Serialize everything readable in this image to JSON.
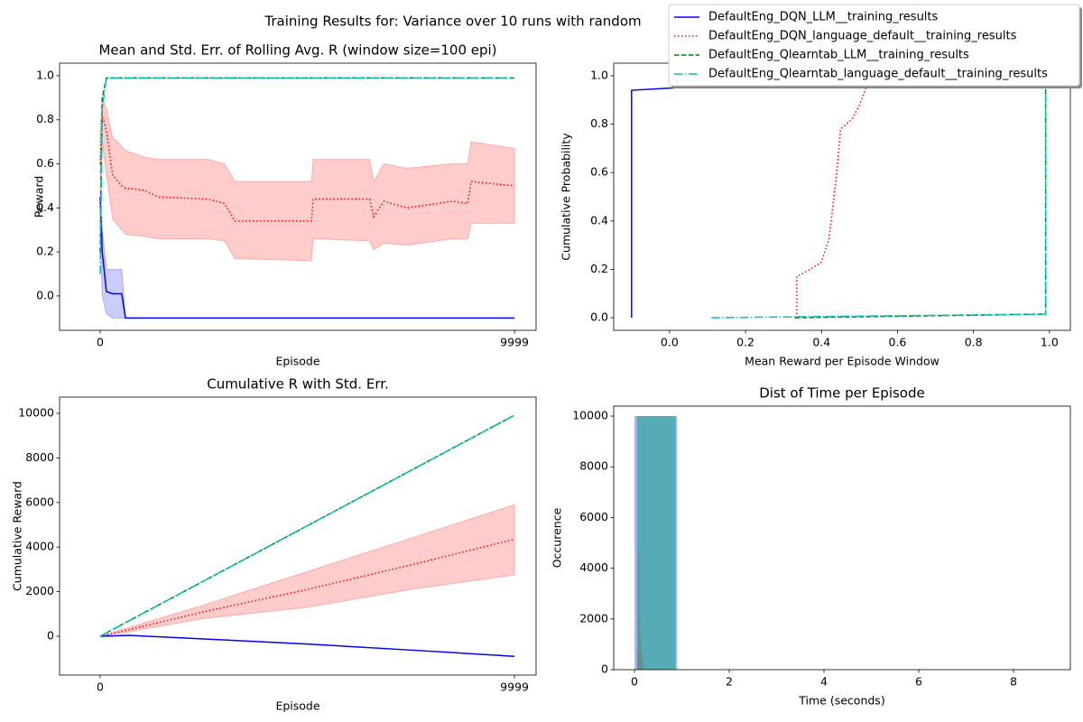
{
  "title": "Training Results for: Variance over 10 runs with random",
  "legend_loc": "upper right",
  "chart_data": [
    {
      "type": "line",
      "title": "Mean and Std. Err. of Rolling Avg. R (window size=100 epi)",
      "xlabel": "Episode",
      "ylabel": "Reward",
      "xlim": [
        -980,
        10520
      ],
      "xticks": [
        0,
        9999
      ],
      "ylim": [
        -0.156,
        1.057
      ],
      "yticks": [
        {
          "value": 0,
          "label": "0.0"
        },
        0.2,
        0.4,
        0.6,
        0.8,
        {
          "value": 1,
          "label": "1.0"
        }
      ],
      "x": [
        0,
        50,
        150,
        300,
        520,
        610,
        1070,
        1400,
        2600,
        3000,
        3250,
        5100,
        5140,
        6500,
        6600,
        6850,
        7400,
        8500,
        8870,
        8950,
        9999
      ],
      "series": [
        {
          "name": "DefaultEng_DQN_LLM__training_results",
          "color": "#0000ff",
          "linestyle": "solid",
          "values": [
            0.45,
            0.2,
            0.02,
            0.01,
            0.01,
            -0.1,
            -0.1,
            -0.1,
            -0.1,
            -0.1,
            -0.1,
            -0.1,
            -0.1,
            -0.1,
            -0.1,
            -0.1,
            -0.1,
            -0.1,
            -0.1,
            -0.1,
            -0.1
          ],
          "lower": [
            0.3,
            0.0,
            -0.08,
            -0.1,
            -0.1,
            -0.1,
            -0.1,
            -0.1,
            -0.1,
            -0.1,
            -0.1,
            -0.1,
            -0.1,
            -0.1,
            -0.1,
            -0.1,
            -0.1,
            -0.1,
            -0.1,
            -0.1,
            -0.1
          ],
          "upper": [
            0.45,
            0.3,
            0.12,
            0.12,
            0.12,
            -0.1,
            -0.1,
            -0.1,
            -0.1,
            -0.1,
            -0.1,
            -0.1,
            -0.1,
            -0.1,
            -0.1,
            -0.1,
            -0.1,
            -0.1,
            -0.1,
            -0.1,
            -0.1
          ]
        },
        {
          "name": "DefaultEng_DQN_language_default__training_results",
          "color": "#ff0000",
          "linestyle": "dotted",
          "values": [
            0.6,
            0.82,
            0.75,
            0.55,
            0.5,
            0.49,
            0.48,
            0.45,
            0.44,
            0.42,
            0.34,
            0.34,
            0.44,
            0.44,
            0.36,
            0.43,
            0.4,
            0.43,
            0.42,
            0.52,
            0.5
          ],
          "lower": [
            0.4,
            0.7,
            0.55,
            0.35,
            0.3,
            0.28,
            0.27,
            0.26,
            0.26,
            0.25,
            0.17,
            0.16,
            0.26,
            0.25,
            0.21,
            0.24,
            0.23,
            0.26,
            0.26,
            0.33,
            0.33
          ],
          "upper": [
            0.75,
            0.9,
            0.85,
            0.72,
            0.68,
            0.66,
            0.63,
            0.62,
            0.62,
            0.6,
            0.52,
            0.52,
            0.62,
            0.62,
            0.52,
            0.6,
            0.58,
            0.6,
            0.6,
            0.7,
            0.67
          ]
        },
        {
          "name": "DefaultEng_Qlearntab_LLM__training_results",
          "color": "#008000",
          "linestyle": "dashed",
          "values": [
            0.2,
            0.9,
            0.99,
            0.99,
            0.99,
            0.99,
            0.99,
            0.99,
            0.99,
            0.99,
            0.99,
            0.99,
            0.99,
            0.99,
            0.99,
            0.99,
            0.99,
            0.99,
            0.99,
            0.99,
            0.99
          ]
        },
        {
          "name": "DefaultEng_Qlearntab_language_default__training_results",
          "color": "#00bfbf",
          "linestyle": "dashdot",
          "values": [
            0.1,
            0.85,
            0.99,
            0.99,
            0.99,
            0.99,
            0.99,
            0.99,
            0.99,
            0.99,
            0.99,
            0.99,
            0.99,
            0.99,
            0.99,
            0.99,
            0.99,
            0.99,
            0.99,
            0.99,
            0.99
          ]
        }
      ]
    },
    {
      "type": "line",
      "xlabel": "Mean Reward per Episode Window",
      "ylabel": "Cumulative Probability",
      "xlim": [
        -0.147,
        1.055
      ],
      "xticks": [
        {
          "value": 0,
          "label": "0.0"
        },
        0.2,
        0.4,
        0.6,
        0.8,
        {
          "value": 1,
          "label": "1.0"
        }
      ],
      "ylim": [
        -0.052,
        1.052
      ],
      "yticks": [
        {
          "value": 0,
          "label": "0.0"
        },
        0.2,
        0.4,
        0.6,
        0.8,
        {
          "value": 1,
          "label": "1.0"
        }
      ],
      "series": [
        {
          "color": "#0000ff",
          "linestyle": "solid",
          "x": [
            -0.1,
            -0.1,
            0.01,
            0.99
          ],
          "values": [
            0,
            0.94,
            0.95,
            1
          ]
        },
        {
          "color": "#ff0000",
          "linestyle": "dotted",
          "x": [
            0.335,
            0.335,
            0.37,
            0.4,
            0.42,
            0.44,
            0.45,
            0.48,
            0.5,
            0.52,
            0.55
          ],
          "values": [
            0,
            0.17,
            0.2,
            0.23,
            0.33,
            0.6,
            0.78,
            0.82,
            0.88,
            0.96,
            1
          ]
        },
        {
          "color": "#008000",
          "linestyle": "dashed",
          "x": [
            0.33,
            0.99,
            0.99
          ],
          "values": [
            0,
            0.015,
            1
          ]
        },
        {
          "color": "#00bfbf",
          "linestyle": "dashdot",
          "x": [
            0.11,
            0.99,
            0.99
          ],
          "values": [
            0,
            0.015,
            1
          ]
        }
      ]
    },
    {
      "type": "line",
      "title": "Cumulative R with Std. Err.",
      "xlabel": "Episode",
      "ylabel": "Cumulative Reward",
      "xlim": [
        -980,
        10520
      ],
      "xticks": [
        0,
        9999
      ],
      "ylim": [
        -1741,
        10729
      ],
      "yticks": [
        0,
        2000,
        4000,
        6000,
        8000,
        10000
      ],
      "x": [
        0,
        700,
        2500,
        5000,
        7500,
        9999
      ],
      "series": [
        {
          "color": "#0000ff",
          "linestyle": "solid",
          "values": [
            0,
            40,
            -120,
            -350,
            -620,
            -900
          ]
        },
        {
          "color": "#ff0000",
          "linestyle": "dotted",
          "values": [
            0,
            300,
            1100,
            2100,
            3200,
            4350
          ],
          "lower": [
            0,
            200,
            800,
            1300,
            2100,
            2750
          ],
          "upper": [
            0,
            400,
            1400,
            2900,
            4400,
            5900
          ]
        },
        {
          "color": "#008000",
          "linestyle": "dashed",
          "values": [
            0,
            700,
            2480,
            4960,
            7440,
            9920
          ]
        },
        {
          "color": "#00bfbf",
          "linestyle": "dashdot",
          "values": [
            0,
            700,
            2480,
            4960,
            7440,
            9920
          ]
        }
      ]
    },
    {
      "type": "histogram",
      "title": "Dist of Time per Episode",
      "xlabel": "Time (seconds)",
      "ylabel": "Occurence",
      "xlim": [
        -0.438,
        9.2
      ],
      "xticks": [
        0,
        2,
        4,
        6,
        8
      ],
      "ylim": [
        0,
        10393
      ],
      "yticks": [
        0,
        2000,
        4000,
        6000,
        8000,
        10000
      ],
      "series": [
        {
          "color": "#0000ff",
          "bins": [
            0,
            0.9
          ],
          "counts": [
            10000
          ]
        },
        {
          "color": "#ff0000",
          "bins": [
            0.06,
            0.08,
            0.1,
            0.12,
            0.14,
            0.16,
            0.18
          ],
          "counts": [
            800,
            4600,
            2000,
            1200,
            700,
            400
          ]
        },
        {
          "color": "#008000",
          "bins": [
            0.05,
            0.86
          ],
          "counts": [
            10000
          ]
        },
        {
          "color": "#00bfbf",
          "bins": [
            0.06,
            0.88
          ],
          "counts": [
            10000
          ]
        }
      ]
    }
  ]
}
